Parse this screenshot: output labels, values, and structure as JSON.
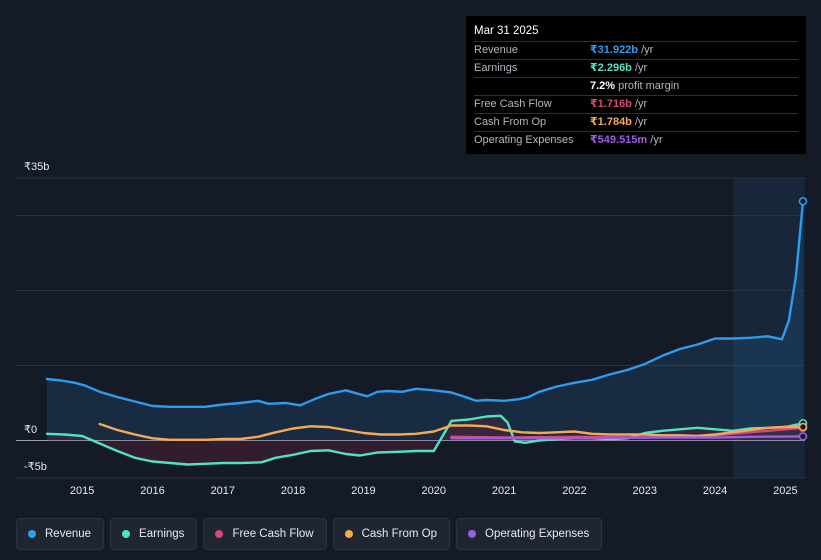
{
  "tooltip": {
    "date": "Mar 31 2025",
    "rows": [
      {
        "label": "Revenue",
        "value": "₹31.922b",
        "unit": "/yr",
        "color": "#2d9bf0"
      },
      {
        "label": "Earnings",
        "value": "₹2.296b",
        "unit": "/yr",
        "color": "#50e3c2"
      },
      {
        "label": "",
        "value": "7.2%",
        "unit": "profit margin",
        "color": "#ffffff"
      },
      {
        "label": "Free Cash Flow",
        "value": "₹1.716b",
        "unit": "/yr",
        "color": "#d9467a"
      },
      {
        "label": "Cash From Op",
        "value": "₹1.784b",
        "unit": "/yr",
        "color": "#f5a952"
      },
      {
        "label": "Operating Expenses",
        "value": "₹549.515m",
        "unit": "/yr",
        "color": "#9b5de5"
      }
    ]
  },
  "chart_data": {
    "type": "line",
    "x_tick_labels": [
      "2015",
      "2016",
      "2017",
      "2018",
      "2019",
      "2020",
      "2021",
      "2022",
      "2023",
      "2024",
      "2025"
    ],
    "y_tick_labels": [
      "₹35b",
      "₹0",
      "-₹5b"
    ],
    "ylim": [
      -5,
      35
    ],
    "xlim": [
      2014.5,
      2025.25
    ],
    "forecast_shade_from": 2024.25,
    "series": [
      {
        "name": "Revenue",
        "color": "#2d9bf0",
        "x": [
          2014.5,
          2014.7,
          2014.9,
          2015.05,
          2015.25,
          2015.5,
          2015.75,
          2016.0,
          2016.25,
          2016.5,
          2016.75,
          2017.0,
          2017.25,
          2017.5,
          2017.65,
          2017.9,
          2018.1,
          2018.3,
          2018.5,
          2018.75,
          2018.9,
          2019.05,
          2019.2,
          2019.35,
          2019.55,
          2019.75,
          2020.0,
          2020.25,
          2020.45,
          2020.6,
          2020.75,
          2021.0,
          2021.2,
          2021.35,
          2021.5,
          2021.75,
          2022.0,
          2022.25,
          2022.5,
          2022.75,
          2023.0,
          2023.25,
          2023.5,
          2023.75,
          2024.0,
          2024.25,
          2024.5,
          2024.75,
          2024.95,
          2025.05,
          2025.15,
          2025.25
        ],
        "values": [
          8.2,
          8.0,
          7.7,
          7.3,
          6.5,
          5.8,
          5.2,
          4.6,
          4.5,
          4.5,
          4.5,
          4.8,
          5.0,
          5.3,
          4.9,
          5.0,
          4.7,
          5.5,
          6.2,
          6.7,
          6.3,
          5.9,
          6.5,
          6.6,
          6.5,
          6.9,
          6.7,
          6.4,
          5.8,
          5.3,
          5.4,
          5.3,
          5.5,
          5.8,
          6.5,
          7.2,
          7.7,
          8.1,
          8.8,
          9.4,
          10.2,
          11.3,
          12.2,
          12.8,
          13.6,
          13.6,
          13.7,
          13.9,
          13.5,
          16.0,
          22.0,
          31.9
        ]
      },
      {
        "name": "Earnings",
        "color": "#50e3c2",
        "x": [
          2014.5,
          2014.75,
          2015.0,
          2015.25,
          2015.5,
          2015.75,
          2016.0,
          2016.25,
          2016.5,
          2016.75,
          2017.0,
          2017.25,
          2017.55,
          2017.75,
          2018.0,
          2018.25,
          2018.5,
          2018.75,
          2018.95,
          2019.2,
          2019.5,
          2019.75,
          2020.0,
          2020.25,
          2020.35,
          2020.5,
          2020.75,
          2020.95,
          2021.05,
          2021.15,
          2021.3,
          2021.5,
          2021.75,
          2022.0,
          2022.25,
          2022.5,
          2022.75,
          2023.0,
          2023.25,
          2023.5,
          2023.75,
          2024.0,
          2024.25,
          2024.5,
          2024.75,
          2025.0,
          2025.25
        ],
        "values": [
          0.9,
          0.8,
          0.6,
          -0.4,
          -1.4,
          -2.3,
          -2.8,
          -3.0,
          -3.2,
          -3.1,
          -3.0,
          -3.0,
          -2.9,
          -2.3,
          -1.9,
          -1.4,
          -1.3,
          -1.8,
          -2.0,
          -1.6,
          -1.5,
          -1.4,
          -1.4,
          2.6,
          2.7,
          2.8,
          3.2,
          3.3,
          2.4,
          -0.1,
          -0.3,
          0.0,
          0.2,
          0.3,
          0.3,
          0.2,
          0.3,
          1.0,
          1.3,
          1.5,
          1.7,
          1.5,
          1.3,
          1.6,
          1.7,
          1.8,
          2.3
        ]
      },
      {
        "name": "Free Cash Flow",
        "color": "#d9467a",
        "x": [
          2020.25,
          2021.0,
          2022.0,
          2023.0,
          2024.0,
          2025.25
        ],
        "values": [
          0.5,
          0.4,
          0.5,
          0.4,
          0.7,
          1.7
        ]
      },
      {
        "name": "Cash From Op",
        "color": "#f5a952",
        "x": [
          2015.25,
          2015.5,
          2015.75,
          2016.0,
          2016.25,
          2016.5,
          2016.75,
          2017.0,
          2017.25,
          2017.5,
          2017.75,
          2018.0,
          2018.25,
          2018.5,
          2018.75,
          2019.0,
          2019.25,
          2019.5,
          2019.75,
          2020.0,
          2020.25,
          2020.5,
          2020.75,
          2021.0,
          2021.25,
          2021.5,
          2021.75,
          2022.0,
          2022.25,
          2022.5,
          2022.75,
          2023.0,
          2023.25,
          2023.5,
          2023.75,
          2024.0,
          2024.25,
          2024.5,
          2024.75,
          2025.0,
          2025.25
        ],
        "values": [
          2.2,
          1.4,
          0.8,
          0.3,
          0.1,
          0.1,
          0.1,
          0.2,
          0.2,
          0.5,
          1.1,
          1.6,
          1.9,
          1.8,
          1.4,
          1.0,
          0.8,
          0.8,
          0.9,
          1.2,
          2.0,
          2.0,
          1.9,
          1.4,
          1.1,
          1.0,
          1.1,
          1.2,
          0.9,
          0.8,
          0.8,
          0.8,
          0.7,
          0.7,
          0.6,
          0.8,
          1.1,
          1.4,
          1.7,
          1.8,
          1.8
        ]
      },
      {
        "name": "Operating Expenses",
        "color": "#9b5de5",
        "x": [
          2020.25,
          2021.0,
          2022.0,
          2023.0,
          2024.0,
          2024.5,
          2025.25
        ],
        "values": [
          0.3,
          0.3,
          0.3,
          0.4,
          0.4,
          0.5,
          0.55
        ]
      }
    ]
  },
  "legend": [
    {
      "label": "Revenue",
      "color": "#2d9bf0"
    },
    {
      "label": "Earnings",
      "color": "#50e3c2"
    },
    {
      "label": "Free Cash Flow",
      "color": "#d9467a"
    },
    {
      "label": "Cash From Op",
      "color": "#f5a952"
    },
    {
      "label": "Operating Expenses",
      "color": "#9b5de5"
    }
  ]
}
